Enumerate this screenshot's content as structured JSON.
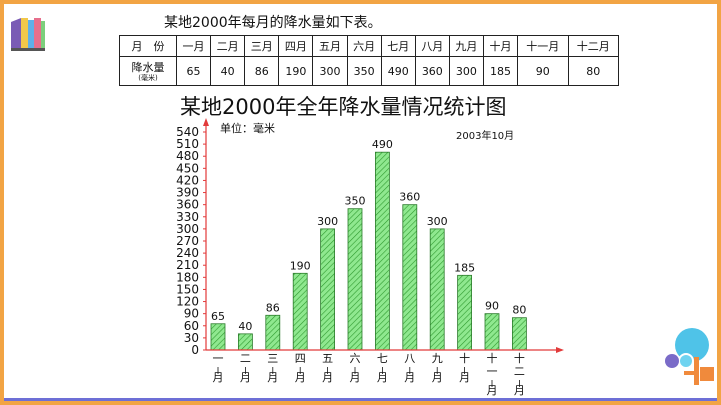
{
  "intro_text": "某地2000年每月的降水量如下表。",
  "table": {
    "month_header": "月　份",
    "value_header": "降水量",
    "value_unit": "(毫米)",
    "months": [
      "一月",
      "二月",
      "三月",
      "四月",
      "五月",
      "六月",
      "七月",
      "八月",
      "九月",
      "十月",
      "十一月",
      "十二月"
    ],
    "values": [
      "65",
      "40",
      "86",
      "190",
      "300",
      "350",
      "490",
      "360",
      "300",
      "185",
      "90",
      "80"
    ]
  },
  "chart_data": {
    "type": "bar",
    "title": "某地2000年全年降水量情况统计图",
    "unit_label": "单位：毫米",
    "date_label": "2003年10月",
    "categories": [
      "一月",
      "二月",
      "三月",
      "四月",
      "五月",
      "六月",
      "七月",
      "八月",
      "九月",
      "十月",
      "十一月",
      "十二月"
    ],
    "values": [
      65,
      40,
      86,
      190,
      300,
      350,
      490,
      360,
      300,
      185,
      90,
      80
    ],
    "ylim": [
      0,
      540
    ],
    "yticks": [
      0,
      30,
      60,
      90,
      120,
      150,
      180,
      210,
      240,
      270,
      300,
      330,
      360,
      390,
      420,
      450,
      480,
      510,
      540
    ],
    "colors": {
      "bar": "#8fe88f",
      "hatch": "#2f9a2f",
      "axis": "#e23a3a"
    }
  }
}
